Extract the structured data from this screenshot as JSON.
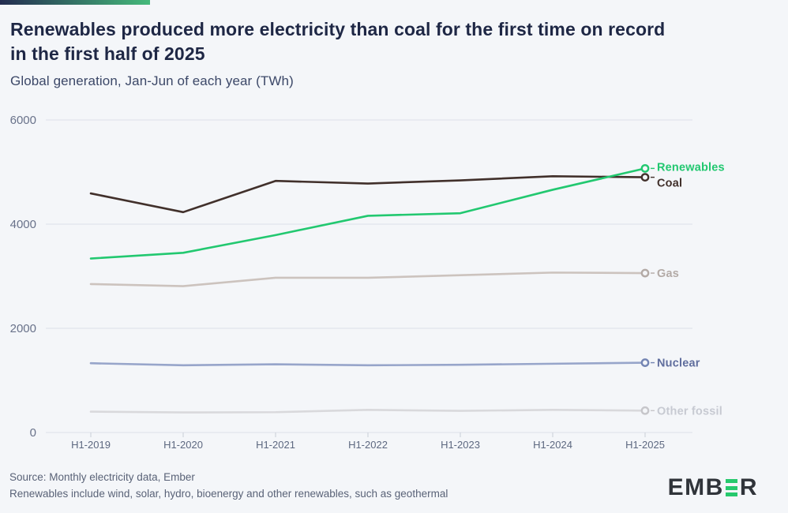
{
  "header": {
    "title_line1": "Renewables produced more electricity than coal for the first time on record",
    "title_line2": "in the first half of 2025",
    "subtitle": "Global generation, Jan-Jun of each year (TWh)"
  },
  "chart_data": {
    "type": "line",
    "title": "Renewables produced more electricity than coal for the first time on record in the first half of 2025",
    "subtitle": "Global generation, Jan-Jun of each year (TWh)",
    "xlabel": "",
    "ylabel": "TWh",
    "categories": [
      "H1-2019",
      "H1-2020",
      "H1-2021",
      "H1-2022",
      "H1-2023",
      "H1-2024",
      "H1-2025"
    ],
    "yticks": [
      0,
      2000,
      4000,
      6000
    ],
    "ylim": [
      0,
      6000
    ],
    "grid": true,
    "legend_position": "right-end-labels",
    "series": [
      {
        "name": "Coal",
        "values": [
          4590,
          4230,
          4830,
          4780,
          4840,
          4920,
          4900
        ],
        "color": "#41302b",
        "marker_color": "#41302b",
        "label_color": "#41302b",
        "label_dy": 7
      },
      {
        "name": "Renewables",
        "values": [
          3340,
          3450,
          3790,
          4160,
          4210,
          4660,
          5070
        ],
        "color": "#22c870",
        "marker_color": "#22c870",
        "label_color": "#22c870",
        "label_dy": -2
      },
      {
        "name": "Gas",
        "values": [
          2850,
          2810,
          2970,
          2970,
          3020,
          3070,
          3060
        ],
        "color": "#ccc3be",
        "marker_color": "#b3aaa6",
        "label_color": "#b3aaa6",
        "label_dy": 0
      },
      {
        "name": "Nuclear",
        "values": [
          1330,
          1290,
          1310,
          1290,
          1300,
          1320,
          1340
        ],
        "color": "#97a5ca",
        "marker_color": "#7485b3",
        "label_color": "#5f6d9d",
        "label_dy": 0
      },
      {
        "name": "Other fossil",
        "values": [
          400,
          385,
          390,
          435,
          415,
          435,
          420
        ],
        "color": "#d9d9dc",
        "marker_color": "#c6c6ca",
        "label_color": "#c7cad2",
        "label_dy": 0
      }
    ],
    "style": {
      "grid_color": "#dde0e9",
      "tick_color": "#c9cdd8",
      "y_tick_text_color": "#69728a",
      "x_tick_text_color": "#5d6880",
      "background": "#f4f6f9"
    }
  },
  "footer": {
    "source": "Source: Monthly electricity data, Ember",
    "note": "Renewables include wind, solar, hydro, bioenergy and other renewables, such as geothermal"
  },
  "logo": {
    "text_prefix": "EMB",
    "text_suffix": "R",
    "bar_color": "#27c96d"
  },
  "accent": {
    "gradient_from": "#232c50",
    "gradient_to": "#45ba7b"
  }
}
